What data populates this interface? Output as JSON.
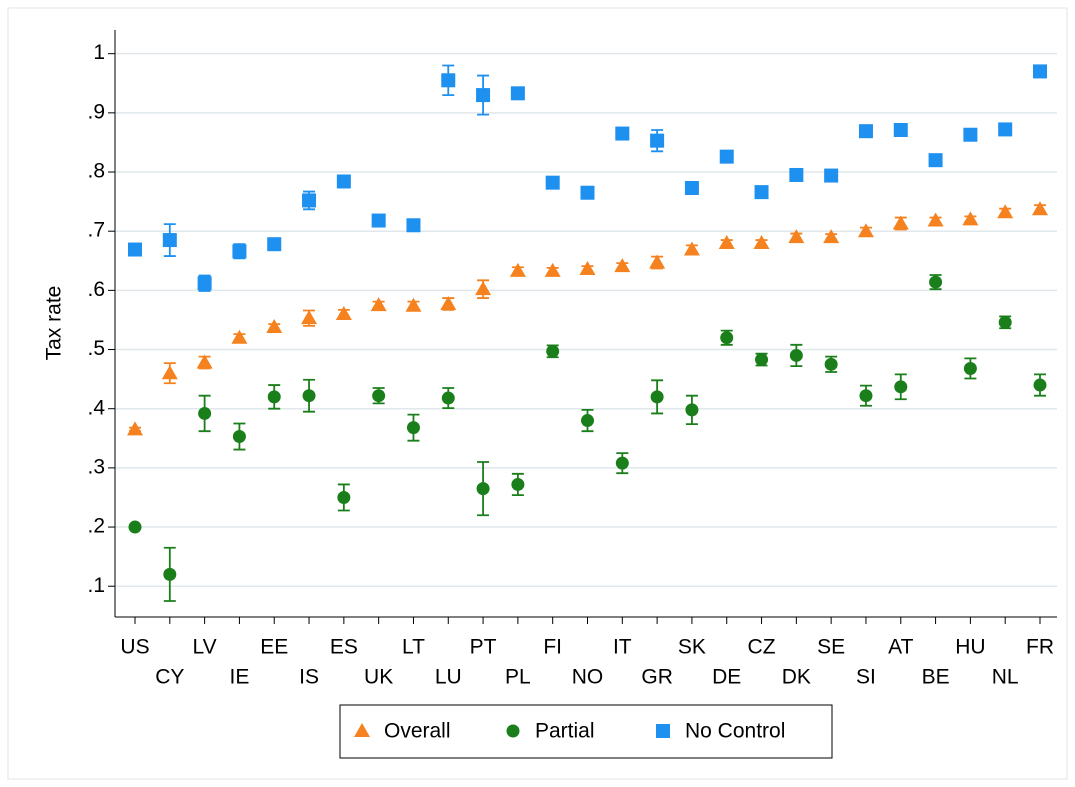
{
  "chart_data": {
    "type": "scatter",
    "y_label": "Tax rate",
    "categories": [
      "US",
      "CY",
      "LV",
      "IE",
      "EE",
      "IS",
      "ES",
      "UK",
      "LT",
      "LU",
      "PT",
      "PL",
      "FI",
      "NO",
      "IT",
      "GR",
      "SK",
      "DE",
      "CZ",
      "DK",
      "SE",
      "SI",
      "AT",
      "BE",
      "HU",
      "NL",
      "FR"
    ],
    "series": [
      {
        "name": "Overall",
        "color": "#f5821f",
        "marker": "triangle",
        "values": [
          0.365,
          0.46,
          0.478,
          0.52,
          0.538,
          0.553,
          0.56,
          0.575,
          0.574,
          0.577,
          0.602,
          0.633,
          0.633,
          0.636,
          0.641,
          0.647,
          0.669,
          0.68,
          0.68,
          0.69,
          0.69,
          0.7,
          0.713,
          0.718,
          0.72,
          0.732,
          0.737
        ],
        "errors": [
          0.003,
          0.017,
          0.01,
          0.006,
          0.005,
          0.013,
          0.007,
          0.006,
          0.007,
          0.01,
          0.015,
          0.006,
          0.005,
          0.005,
          0.005,
          0.01,
          0.007,
          0.005,
          0.005,
          0.006,
          0.005,
          0.006,
          0.01,
          0.005,
          0.005,
          0.006,
          0.007
        ]
      },
      {
        "name": "Partial",
        "color": "#1a7f1a",
        "marker": "circle",
        "values": [
          0.2,
          0.12,
          0.392,
          0.353,
          0.42,
          0.422,
          0.25,
          0.422,
          0.368,
          0.418,
          0.265,
          0.272,
          0.497,
          0.38,
          0.308,
          0.42,
          0.398,
          0.52,
          0.483,
          0.49,
          0.475,
          0.422,
          0.437,
          0.614,
          0.468,
          0.546,
          0.44
        ],
        "errors": [
          0.003,
          0.045,
          0.03,
          0.022,
          0.02,
          0.027,
          0.022,
          0.013,
          0.022,
          0.017,
          0.045,
          0.018,
          0.01,
          0.018,
          0.017,
          0.028,
          0.024,
          0.012,
          0.01,
          0.018,
          0.013,
          0.017,
          0.021,
          0.012,
          0.017,
          0.01,
          0.018
        ]
      },
      {
        "name": "No Control",
        "color": "#1e90f0",
        "marker": "square",
        "values": [
          0.669,
          0.685,
          0.612,
          0.666,
          0.678,
          0.752,
          0.784,
          0.718,
          0.71,
          0.955,
          0.93,
          0.933,
          0.782,
          0.765,
          0.865,
          0.853,
          0.773,
          0.826,
          0.766,
          0.795,
          0.794,
          0.869,
          0.871,
          0.82,
          0.863,
          0.872,
          0.97
        ],
        "errors": [
          0.004,
          0.027,
          0.013,
          0.012,
          0.005,
          0.015,
          0.006,
          0.004,
          0.005,
          0.025,
          0.033,
          0.005,
          0.004,
          0.004,
          0.005,
          0.018,
          0.004,
          0.004,
          0.004,
          0.005,
          0.005,
          0.004,
          0.007,
          0.004,
          0.004,
          0.005,
          0.009
        ]
      }
    ],
    "ylim": [
      0.048,
      1.04
    ],
    "yticks": [
      {
        "value": 0.1,
        "label": ".1"
      },
      {
        "value": 0.2,
        "label": ".2"
      },
      {
        "value": 0.3,
        "label": ".3"
      },
      {
        "value": 0.4,
        "label": ".4"
      },
      {
        "value": 0.5,
        "label": ".5"
      },
      {
        "value": 0.6,
        "label": ".6"
      },
      {
        "value": 0.7,
        "label": ".7"
      },
      {
        "value": 0.8,
        "label": ".8"
      },
      {
        "value": 0.9,
        "label": ".9"
      },
      1
    ],
    "grid": true,
    "legend_position": "bottom"
  }
}
